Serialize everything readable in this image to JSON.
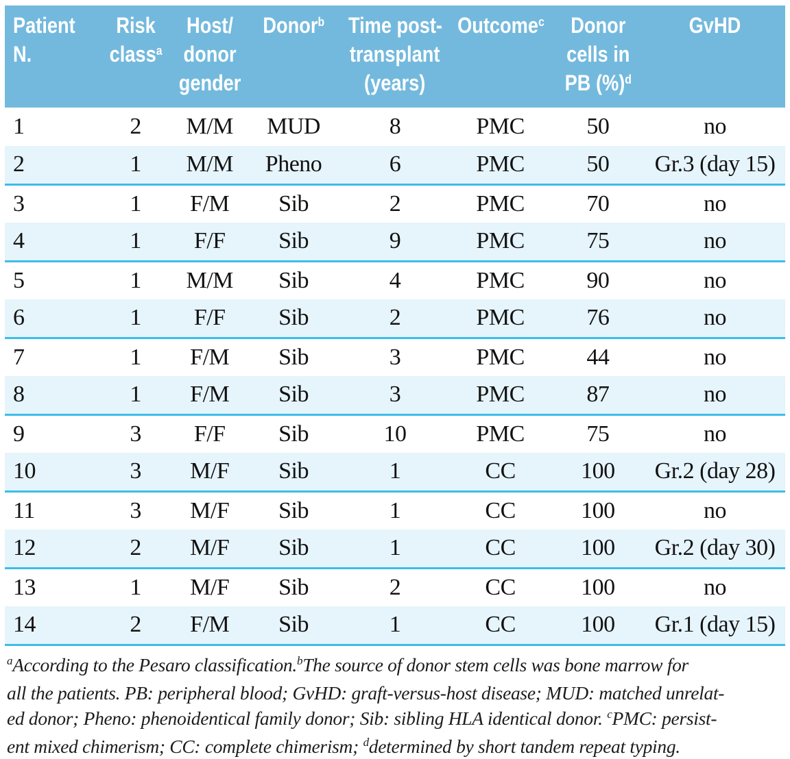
{
  "colors": {
    "header_bg": "#73b9dd",
    "header_text": "#ffffff",
    "shaded_row_bg": "#e6f4fb",
    "rule": "#3cbde7",
    "body_text": "#121212"
  },
  "table": {
    "columns": [
      {
        "id": "patient-n",
        "lines": [
          "Patient",
          "N."
        ],
        "sup": ""
      },
      {
        "id": "risk-class",
        "lines": [
          "Risk",
          "class"
        ],
        "sup": "a"
      },
      {
        "id": "host-donor-gender",
        "lines": [
          "Host/",
          "donor",
          "gender"
        ],
        "sup": ""
      },
      {
        "id": "donor",
        "lines": [
          "Donor"
        ],
        "sup": "b"
      },
      {
        "id": "time-post-transplant",
        "lines": [
          "Time post-",
          "transplant",
          "(years)"
        ],
        "sup": ""
      },
      {
        "id": "outcome",
        "lines": [
          "Outcome"
        ],
        "sup": "c"
      },
      {
        "id": "donor-cells-pb",
        "lines": [
          "Donor",
          "cells in",
          "PB (%)"
        ],
        "sup": "d"
      },
      {
        "id": "gvhd",
        "lines": [
          "GvHD"
        ],
        "sup": ""
      }
    ],
    "rows": [
      {
        "shaded": false,
        "cells": [
          "1",
          "2",
          "M/M",
          "MUD",
          "8",
          "PMC",
          "50",
          "no"
        ]
      },
      {
        "shaded": true,
        "cells": [
          "2",
          "1",
          "M/M",
          "Pheno",
          "6",
          "PMC",
          "50",
          "Gr.3 (day 15)"
        ]
      },
      {
        "shaded": false,
        "cells": [
          "3",
          "1",
          "F/M",
          "Sib",
          "2",
          "PMC",
          "70",
          "no"
        ]
      },
      {
        "shaded": true,
        "cells": [
          "4",
          "1",
          "F/F",
          "Sib",
          "9",
          "PMC",
          "75",
          "no"
        ]
      },
      {
        "shaded": false,
        "cells": [
          "5",
          "1",
          "M/M",
          "Sib",
          "4",
          "PMC",
          "90",
          "no"
        ]
      },
      {
        "shaded": true,
        "cells": [
          "6",
          "1",
          "F/F",
          "Sib",
          "2",
          "PMC",
          "76",
          "no"
        ]
      },
      {
        "shaded": false,
        "cells": [
          "7",
          "1",
          "F/M",
          "Sib",
          "3",
          "PMC",
          "44",
          "no"
        ]
      },
      {
        "shaded": true,
        "cells": [
          "8",
          "1",
          "F/M",
          "Sib",
          "3",
          "PMC",
          "87",
          "no"
        ]
      },
      {
        "shaded": false,
        "cells": [
          "9",
          "3",
          "F/F",
          "Sib",
          "10",
          "PMC",
          "75",
          "no"
        ]
      },
      {
        "shaded": true,
        "cells": [
          "10",
          "3",
          "M/F",
          "Sib",
          "1",
          "CC",
          "100",
          "Gr.2 (day 28)"
        ]
      },
      {
        "shaded": false,
        "cells": [
          "11",
          "3",
          "M/F",
          "Sib",
          "1",
          "CC",
          "100",
          "no"
        ]
      },
      {
        "shaded": true,
        "cells": [
          "12",
          "2",
          "M/F",
          "Sib",
          "1",
          "CC",
          "100",
          "Gr.2 (day 30)"
        ]
      },
      {
        "shaded": false,
        "cells": [
          "13",
          "1",
          "M/F",
          "Sib",
          "2",
          "CC",
          "100",
          "no"
        ]
      },
      {
        "shaded": true,
        "cells": [
          "14",
          "2",
          "F/M",
          "Sib",
          "1",
          "CC",
          "100",
          "Gr.1 (day 15)"
        ]
      }
    ]
  },
  "footnotes": {
    "lines": [
      [
        {
          "sup": "a"
        },
        {
          "t": "According to the Pesaro classification."
        },
        {
          "sup": "b"
        },
        {
          "t": "The source of donor stem cells was bone marrow for"
        }
      ],
      [
        {
          "t": "all the patients. PB: peripheral blood; GvHD: graft-versus-host disease; MUD: matched unrelat-"
        }
      ],
      [
        {
          "t": "ed donor; Pheno: phenoidentical family donor; Sib: sibling HLA identical donor. "
        },
        {
          "sup": "c"
        },
        {
          "t": "PMC: persist-"
        }
      ],
      [
        {
          "t": "ent mixed chimerism; CC: complete chimerism; "
        },
        {
          "sup": "d"
        },
        {
          "t": "determined by short tandem repeat typing."
        }
      ]
    ]
  }
}
